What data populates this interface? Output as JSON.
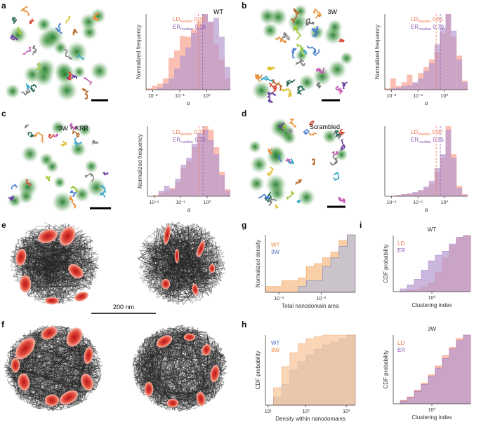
{
  "colors": {
    "ld": "#f07a52",
    "er": "#8e5fb3",
    "ld_fill": "#f9b4a2",
    "er_fill": "#b89ad0",
    "wt": "#f08a3c",
    "w3": "#4a6fbf",
    "wt_fill": "#f9c79a",
    "w3_fill": "#b8bfd6",
    "nanodomain": "#d6382c",
    "cluster": "#3a8a3a"
  },
  "panels": {
    "a": {
      "label": "a",
      "image_title": "WT"
    },
    "b": {
      "label": "b",
      "image_title": "3W"
    },
    "c": {
      "label": "c",
      "image_title": "3W + KRR"
    },
    "d": {
      "label": "d",
      "image_title": "Scrambled"
    },
    "e": {
      "label": "e",
      "scale_label": "200 nm"
    },
    "f": {
      "label": "f"
    },
    "g": {
      "label": "g"
    },
    "h": {
      "label": "h"
    },
    "i": {
      "label": "i",
      "title_top": "WT",
      "title_bottom": "3W"
    }
  },
  "legend_alpha": {
    "ld_prefix": "LD",
    "er_prefix": "ER",
    "sub": "median"
  },
  "chart_data": [
    {
      "id": "a",
      "type": "bar",
      "ylabel": "Normalized frequency",
      "xlabel": "α",
      "xscale": "log",
      "xticks": [
        "10⁻²",
        "10⁻¹",
        "10⁰"
      ],
      "ld_median": "0.30",
      "er_median": "0.58",
      "series": [
        {
          "name": "LD",
          "values": [
            0.02,
            0.05,
            0.08,
            0.15,
            0.42,
            0.52,
            0.71,
            0.7,
            0.8,
            0.9,
            1.0,
            0.88,
            0.6,
            0.4,
            0.15
          ]
        },
        {
          "name": "ER",
          "values": [
            0.0,
            0.0,
            0.03,
            0.08,
            0.15,
            0.28,
            0.45,
            0.56,
            0.75,
            0.82,
            1.0,
            0.9,
            0.95,
            0.7,
            0.3
          ]
        }
      ]
    },
    {
      "id": "b",
      "type": "bar",
      "ylabel": "Normalized frequency",
      "xlabel": "α",
      "xscale": "log",
      "xticks": [
        "10⁻²",
        "10⁻¹",
        "10⁰"
      ],
      "ld_median": "0.61",
      "er_median": "0.70",
      "series": [
        {
          "name": "LD",
          "values": [
            0.02,
            0.15,
            0.05,
            0.1,
            0.2,
            0.08,
            0.22,
            0.3,
            0.4,
            0.5,
            0.75,
            1.0,
            0.7,
            0.45,
            0.12
          ]
        },
        {
          "name": "ER",
          "values": [
            0.0,
            0.02,
            0.03,
            0.05,
            0.06,
            0.1,
            0.15,
            0.25,
            0.35,
            0.6,
            0.82,
            1.0,
            0.78,
            0.4,
            0.1
          ]
        }
      ]
    },
    {
      "id": "c",
      "type": "bar",
      "ylabel": "Normalized frequency",
      "xlabel": "α",
      "xscale": "log",
      "xticks": [
        "10⁻²",
        "10⁻¹",
        "10⁰"
      ],
      "ld_median": "0.79",
      "er_median": "0.75",
      "series": [
        {
          "name": "LD",
          "values": [
            0.0,
            0.02,
            0.05,
            0.08,
            0.12,
            0.2,
            0.4,
            0.5,
            0.7,
            0.85,
            1.0,
            0.95,
            0.7,
            0.35,
            0.1
          ]
        },
        {
          "name": "ER",
          "values": [
            0.0,
            0.0,
            0.08,
            0.15,
            0.1,
            0.25,
            0.45,
            0.55,
            0.75,
            0.9,
            0.95,
            0.8,
            0.6,
            0.3,
            0.08
          ]
        }
      ]
    },
    {
      "id": "d",
      "type": "bar",
      "ylabel": "",
      "xlabel": "α",
      "xscale": "log",
      "xticks": [
        "10⁻²",
        "10⁻¹",
        "10⁰"
      ],
      "ld_median": "0.97",
      "er_median": "0.95",
      "series": [
        {
          "name": "LD",
          "values": [
            0.0,
            0.01,
            0.02,
            0.03,
            0.04,
            0.05,
            0.08,
            0.12,
            0.18,
            0.35,
            0.55,
            1.0,
            0.6,
            0.15,
            0.03
          ]
        },
        {
          "name": "ER",
          "values": [
            0.0,
            0.0,
            0.02,
            0.03,
            0.04,
            0.06,
            0.09,
            0.14,
            0.22,
            0.4,
            0.6,
            0.95,
            0.55,
            0.12,
            0.02
          ]
        }
      ]
    },
    {
      "id": "g",
      "type": "area",
      "ylabel": "Normalized density",
      "xlabel": "Total nanodomain area",
      "xscale": "log",
      "xticks": [
        "10⁻³",
        "10⁻²"
      ],
      "series": [
        {
          "name": "WT",
          "values": [
            0.1,
            0.1,
            0.2,
            0.2,
            0.25,
            0.45,
            0.5,
            0.6,
            0.7,
            0.9,
            1.0
          ]
        },
        {
          "name": "3W",
          "values": [
            0.0,
            0.0,
            0.0,
            0.0,
            0.1,
            0.2,
            0.2,
            0.45,
            0.6,
            0.8,
            1.0
          ]
        }
      ]
    },
    {
      "id": "h",
      "type": "area",
      "ylabel": "CDF probability",
      "xlabel": "Density within nanodomains",
      "xscale": "log",
      "xticks": [
        "10¹",
        "10²",
        "10³"
      ],
      "series": [
        {
          "name": "WT",
          "values": [
            0.0,
            0.12,
            0.3,
            0.5,
            0.62,
            0.72,
            0.8,
            0.86,
            0.9,
            0.95,
            1.0
          ]
        },
        {
          "name": "3W",
          "values": [
            0.0,
            0.25,
            0.55,
            0.75,
            0.88,
            0.95,
            0.98,
            1.0,
            1.0,
            1.0,
            1.0
          ]
        }
      ]
    },
    {
      "id": "i_wt",
      "type": "area",
      "title": "WT",
      "ylabel": "CDF probability",
      "xlabel": "Clustering index",
      "xscale": "log",
      "xticks": [
        "10⁰"
      ],
      "series": [
        {
          "name": "LD",
          "values": [
            0.0,
            0.01,
            0.02,
            0.04,
            0.08,
            0.15,
            0.35,
            0.6,
            0.82,
            0.95,
            1.0
          ]
        },
        {
          "name": "ER",
          "values": [
            0.0,
            0.05,
            0.12,
            0.22,
            0.38,
            0.55,
            0.65,
            0.72,
            0.85,
            0.97,
            1.0
          ]
        }
      ]
    },
    {
      "id": "i_3w",
      "type": "area",
      "title": "3W",
      "ylabel": "CDF probability",
      "xlabel": "Clustering index",
      "xscale": "log",
      "xticks": [
        "10⁰"
      ],
      "series": [
        {
          "name": "LD",
          "values": [
            0.0,
            0.05,
            0.1,
            0.2,
            0.3,
            0.42,
            0.55,
            0.7,
            0.82,
            0.95,
            1.0
          ]
        },
        {
          "name": "ER",
          "values": [
            0.0,
            0.04,
            0.09,
            0.18,
            0.28,
            0.4,
            0.52,
            0.66,
            0.8,
            0.92,
            1.0
          ]
        }
      ]
    }
  ]
}
